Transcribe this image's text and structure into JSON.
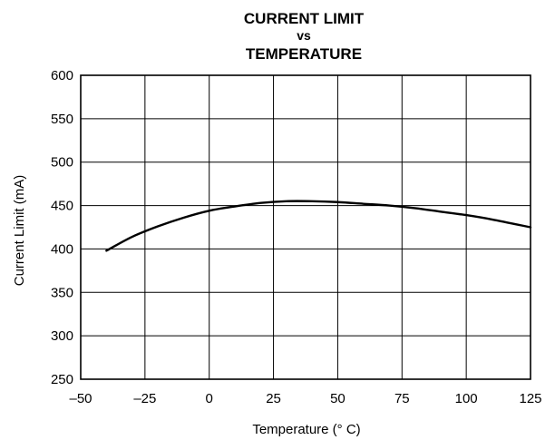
{
  "chart_data": {
    "type": "line",
    "title_lines": [
      "CURRENT LIMIT",
      "vs",
      "TEMPERATURE"
    ],
    "xlabel": "Temperature (° C)",
    "ylabel": "Current Limit (mA)",
    "xlim": [
      -50,
      125
    ],
    "ylim": [
      250,
      600
    ],
    "x_ticks": [
      -50,
      -25,
      0,
      25,
      50,
      75,
      100,
      125
    ],
    "x_tick_labels": [
      "–50",
      "–25",
      "0",
      "25",
      "50",
      "75",
      "100",
      "125"
    ],
    "y_ticks": [
      250,
      300,
      350,
      400,
      450,
      500,
      550,
      600
    ],
    "y_tick_labels": [
      "250",
      "300",
      "350",
      "400",
      "450",
      "500",
      "550",
      "600"
    ],
    "grid": true,
    "series": [
      {
        "x": [
          -40,
          -30,
          -20,
          -10,
          0,
          10,
          20,
          30,
          40,
          50,
          60,
          70,
          80,
          90,
          100,
          110,
          125
        ],
        "y": [
          398,
          414,
          426,
          436,
          444,
          449,
          453,
          455,
          455,
          454,
          452,
          450,
          447,
          443,
          439,
          434,
          425
        ]
      }
    ]
  }
}
